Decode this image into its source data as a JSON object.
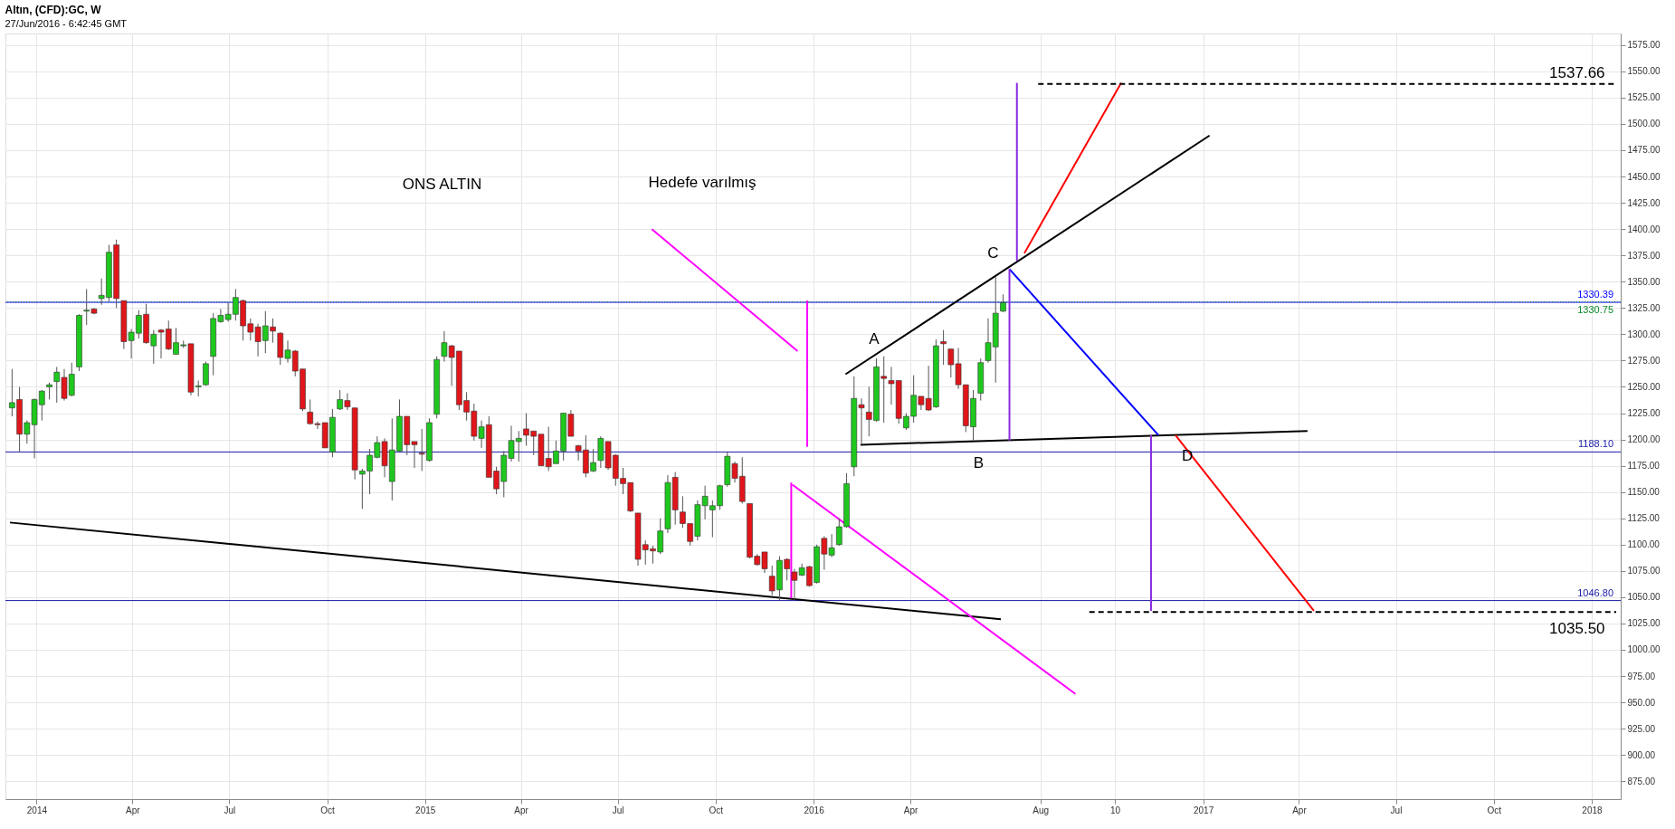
{
  "chart_data": {
    "type": "candlestick",
    "title": "Altın, (CFD):GC, W",
    "subtitle": "27/Jun/2016 - 6:42:45 GMT",
    "xlim": [
      "2013-12-07",
      "2018-01-24"
    ],
    "xticks": [
      {
        "value": "2014-01-01",
        "label": "2014"
      },
      {
        "value": "2014-04-01",
        "label": "Apr"
      },
      {
        "value": "2014-07-01",
        "label": "Jul"
      },
      {
        "value": "2014-10-01",
        "label": "Oct"
      },
      {
        "value": "2015-01-01",
        "label": "2015"
      },
      {
        "value": "2015-04-01",
        "label": "Apr"
      },
      {
        "value": "2015-07-01",
        "label": "Jul"
      },
      {
        "value": "2015-10-01",
        "label": "Oct"
      },
      {
        "value": "2016-01-01",
        "label": "2016"
      },
      {
        "value": "2016-04-01",
        "label": "Apr"
      },
      {
        "value": "2016-08-01",
        "label": "Aug"
      },
      {
        "value": "2016-10-10",
        "label": "10"
      },
      {
        "value": "2017-01-01",
        "label": "2017"
      },
      {
        "value": "2017-04-01",
        "label": "Apr"
      },
      {
        "value": "2017-07-01",
        "label": "Jul"
      },
      {
        "value": "2017-10-01",
        "label": "Oct"
      },
      {
        "value": "2018-01-01",
        "label": "2018"
      }
    ],
    "ylim": [
      858,
      1586
    ],
    "yticks": [
      {
        "value": 875,
        "label": "875.00"
      },
      {
        "value": 900,
        "label": "900.00"
      },
      {
        "value": 925,
        "label": "925.00"
      },
      {
        "value": 950,
        "label": "950.00"
      },
      {
        "value": 975,
        "label": "975.00"
      },
      {
        "value": 1000,
        "label": "1000.00"
      },
      {
        "value": 1025,
        "label": "1025.00"
      },
      {
        "value": 1050,
        "label": "1050.00"
      },
      {
        "value": 1075,
        "label": "1075.00"
      },
      {
        "value": 1100,
        "label": "1100.00"
      },
      {
        "value": 1125,
        "label": "1125.00"
      },
      {
        "value": 1150,
        "label": "1150.00"
      },
      {
        "value": 1175,
        "label": "1175.00"
      },
      {
        "value": 1200,
        "label": "1200.00"
      },
      {
        "value": 1225,
        "label": "1225.00"
      },
      {
        "value": 1250,
        "label": "1250.00"
      },
      {
        "value": 1275,
        "label": "1275.00"
      },
      {
        "value": 1300,
        "label": "1300.00"
      },
      {
        "value": 1325,
        "label": "1325.00"
      },
      {
        "value": 1350,
        "label": "1350.00"
      },
      {
        "value": 1375,
        "label": "1375.00"
      },
      {
        "value": 1400,
        "label": "1400.00"
      },
      {
        "value": 1425,
        "label": "1425.00"
      },
      {
        "value": 1450,
        "label": "1450.00"
      },
      {
        "value": 1475,
        "label": "1475.00"
      },
      {
        "value": 1500,
        "label": "1500.00"
      },
      {
        "value": 1525,
        "label": "1525.00"
      },
      {
        "value": 1550,
        "label": "1550.00"
      },
      {
        "value": 1575,
        "label": "1575.00"
      }
    ],
    "grid": true,
    "ref_lines": [
      {
        "axis": "y",
        "value": 1330.39,
        "label": "1330.39",
        "color": "#0000ff",
        "line_style": "solid"
      },
      {
        "axis": "y",
        "value": 1330.75,
        "label": "1330.75",
        "color": "#0a8a2a",
        "line_style": "dotted"
      },
      {
        "axis": "y",
        "value": 1188.1,
        "label": "1188.10",
        "color": "#1a1aa6",
        "line_style": "solid"
      },
      {
        "axis": "y",
        "value": 1046.8,
        "label": "1046.80",
        "color": "#1a1aa6",
        "line_style": "solid"
      }
    ],
    "annotations": [
      "ONS ALTIN",
      "Hedefe varılmış",
      "A",
      "B",
      "C",
      "D",
      "1537.66",
      "1035.50"
    ],
    "series": [
      {
        "type": "line",
        "color": "#000000",
        "line_style": "solid",
        "x": [
          "2013-12-07",
          "2016-06-25"
        ],
        "values": [
          1121,
          1029
        ]
      },
      {
        "type": "line",
        "color": "#000000",
        "line_style": "solid",
        "x": [
          "2016-01-31",
          "2017-01-07"
        ],
        "values": [
          1262,
          1489
        ]
      },
      {
        "type": "line",
        "color": "#000000",
        "line_style": "solid",
        "x": [
          "2016-02-14",
          "2017-04-09"
        ],
        "values": [
          1195,
          1208
        ]
      },
      {
        "type": "line",
        "color": "#0000ff",
        "line_style": "solid",
        "x": [
          "2016-07-03",
          "2016-11-20"
        ],
        "values": [
          1362,
          1204
        ]
      },
      {
        "type": "line",
        "color": "#ff0000",
        "line_style": "solid",
        "x": [
          "2016-07-17",
          "2016-10-16"
        ],
        "values": [
          1377,
          1539
        ]
      },
      {
        "type": "line",
        "color": "#ff0000",
        "line_style": "solid",
        "x": [
          "2016-12-06",
          "2017-04-15"
        ],
        "values": [
          1204,
          1037
        ]
      },
      {
        "type": "line",
        "color": "#8a2be2",
        "line_style": "solid",
        "x": [
          "2016-07-03",
          "2016-07-03"
        ],
        "values": [
          1362,
          1199
        ]
      },
      {
        "type": "line",
        "color": "#8a2be2",
        "line_style": "solid",
        "x": [
          "2016-07-10",
          "2016-07-10"
        ],
        "values": [
          1539,
          1370
        ]
      },
      {
        "type": "line",
        "color": "#8a2be2",
        "line_style": "solid",
        "x": [
          "2016-11-13",
          "2016-11-13"
        ],
        "values": [
          1204,
          1037
        ]
      },
      {
        "type": "line",
        "color": "#ff00ff",
        "line_style": "solid",
        "x": [
          "2015-12-26",
          "2015-12-26"
        ],
        "values": [
          1332,
          1193
        ]
      },
      {
        "type": "line",
        "color": "#ff00ff",
        "line_style": "solid",
        "x": [
          "2015-12-11",
          "2015-12-11"
        ],
        "values": [
          1159,
          1049
        ]
      },
      {
        "type": "line",
        "color": "#ff00ff",
        "line_style": "solid",
        "x": [
          "2015-08-02",
          "2015-12-17"
        ],
        "values": [
          1400,
          1284
        ]
      },
      {
        "type": "line",
        "color": "#ff00ff",
        "line_style": "solid",
        "x": [
          "2016-09-03",
          "2015-12-12"
        ],
        "values": [
          958,
          1157
        ]
      },
      {
        "type": "line",
        "color": "#000000",
        "line_style": "dashed",
        "x": [
          "2016-07-30",
          "2018-01-24"
        ],
        "values": [
          1538,
          1538
        ]
      },
      {
        "type": "line",
        "color": "#000000",
        "line_style": "dashed",
        "x": [
          "2016-09-16",
          "2018-01-24"
        ],
        "values": [
          1036,
          1036
        ]
      },
      {
        "type": "candlestick",
        "colors": [
          "#1ec81e",
          "#e0161b",
          "#1ec81e",
          "#1ec81e",
          "#1ec81e",
          "#1ec81e",
          "#1ec81e",
          "#e0161b",
          "#1ec81e",
          "#1ec81e",
          "#1ec81e",
          "#e0161b",
          "#1ec81e",
          "#1ec81e",
          "#e0161b",
          "#e0161b",
          "#1ec81e",
          "#1ec81e",
          "#e0161b",
          "#1ec81e",
          "#e0161b",
          "#e0161b",
          "#1ec81e",
          "#1ec81e",
          "#e0161b",
          "#1ec81e",
          "#1ec81e",
          "#1ec81e",
          "#1ec81e",
          "#1ec81e",
          "#1ec81e",
          "#e0161b",
          "#e0161b",
          "#e0161b",
          "#1ec81e",
          "#e0161b",
          "#e0161b",
          "#1ec81e",
          "#e0161b",
          "#e0161b",
          "#e0161b",
          "#e0161b",
          "#e0161b",
          "#1ec81e",
          "#1ec81e",
          "#e0161b",
          "#e0161b",
          "#1ec81e",
          "#1ec81e",
          "#1ec81e",
          "#e0161b",
          "#1ec81e",
          "#1ec81e",
          "#e0161b",
          "#e0161b",
          "#e0161b",
          "#1ec81e",
          "#1ec81e",
          "#1ec81e",
          "#e0161b",
          "#e0161b",
          "#e0161b",
          "#e0161b",
          "#1ec81e",
          "#e0161b",
          "#e0161b",
          "#1ec81e",
          "#1ec81e",
          "#1ec81e",
          "#e0161b",
          "#e0161b",
          "#e0161b",
          "#e0161b",
          "#1ec81e",
          "#1ec81e",
          "#e0161b",
          "#e0161b",
          "#e0161b",
          "#1ec81e",
          "#1ec81e",
          "#e0161b",
          "#e0161b",
          "#e0161b",
          "#e0161b",
          "#e0161b",
          "#e0161b",
          "#e0161b",
          "#1ec81e",
          "#1ec81e",
          "#e0161b",
          "#e0161b",
          "#e0161b",
          "#1ec81e",
          "#1ec81e",
          "#1ec81e",
          "#1ec81e",
          "#1ec81e",
          "#e0161b",
          "#e0161b",
          "#e0161b",
          "#e0161b",
          "#e0161b",
          "#e0161b",
          "#1ec81e",
          "#e0161b",
          "#e0161b",
          "#1ec81e",
          "#e0161b",
          "#1ec81e",
          "#e0161b",
          "#1ec81e",
          "#1ec81e",
          "#1ec81e",
          "#1ec81e",
          "#e0161b",
          "#e0161b",
          "#1ec81e",
          "#e0161b",
          "#e0161b",
          "#e0161b",
          "#1ec81e",
          "#1ec81e",
          "#e0161b",
          "#e0161b",
          "#1ec81e",
          "#e0161b",
          "#e0161b",
          "#e0161b",
          "#e0161b",
          "#1ec81e",
          "#1ec81e",
          "#1ec81e",
          "#1ec81e",
          "#1ec81e"
        ],
        "x": [
          "2013-12-09",
          "2013-12-16",
          "2013-12-23",
          "2013-12-30",
          "2014-01-06",
          "2014-01-13",
          "2014-01-20",
          "2014-01-27",
          "2014-02-03",
          "2014-02-10",
          "2014-02-17",
          "2014-02-24",
          "2014-03-03",
          "2014-03-10",
          "2014-03-17",
          "2014-03-24",
          "2014-03-31",
          "2014-04-07",
          "2014-04-14",
          "2014-04-21",
          "2014-04-28",
          "2014-05-05",
          "2014-05-12",
          "2014-05-19",
          "2014-05-26",
          "2014-06-02",
          "2014-06-09",
          "2014-06-16",
          "2014-06-23",
          "2014-06-30",
          "2014-07-07",
          "2014-07-14",
          "2014-07-21",
          "2014-07-28",
          "2014-08-04",
          "2014-08-11",
          "2014-08-18",
          "2014-08-25",
          "2014-09-01",
          "2014-09-08",
          "2014-09-15",
          "2014-09-22",
          "2014-09-29",
          "2014-10-06",
          "2014-10-13",
          "2014-10-20",
          "2014-10-27",
          "2014-11-03",
          "2014-11-10",
          "2014-11-17",
          "2014-11-24",
          "2014-12-01",
          "2014-12-08",
          "2014-12-15",
          "2014-12-22",
          "2014-12-29",
          "2015-01-05",
          "2015-01-12",
          "2015-01-19",
          "2015-01-26",
          "2015-02-02",
          "2015-02-09",
          "2015-02-16",
          "2015-02-23",
          "2015-03-02",
          "2015-03-09",
          "2015-03-16",
          "2015-03-23",
          "2015-03-30",
          "2015-04-06",
          "2015-04-13",
          "2015-04-20",
          "2015-04-27",
          "2015-05-04",
          "2015-05-11",
          "2015-05-18",
          "2015-05-25",
          "2015-06-01",
          "2015-06-08",
          "2015-06-15",
          "2015-06-22",
          "2015-06-29",
          "2015-07-06",
          "2015-07-13",
          "2015-07-20",
          "2015-07-27",
          "2015-08-03",
          "2015-08-10",
          "2015-08-17",
          "2015-08-24",
          "2015-08-31",
          "2015-09-07",
          "2015-09-14",
          "2015-09-21",
          "2015-09-28",
          "2015-10-05",
          "2015-10-12",
          "2015-10-19",
          "2015-10-26",
          "2015-11-02",
          "2015-11-09",
          "2015-11-16",
          "2015-11-23",
          "2015-11-30",
          "2015-12-07",
          "2015-12-14",
          "2015-12-21",
          "2015-12-28",
          "2016-01-04",
          "2016-01-11",
          "2016-01-18",
          "2016-01-25",
          "2016-02-01",
          "2016-02-08",
          "2016-02-15",
          "2016-02-22",
          "2016-02-29",
          "2016-03-07",
          "2016-03-14",
          "2016-03-21",
          "2016-03-28",
          "2016-04-04",
          "2016-04-11",
          "2016-04-18",
          "2016-04-25",
          "2016-05-02",
          "2016-05-09",
          "2016-05-16",
          "2016-05-23",
          "2016-05-30",
          "2016-06-06",
          "2016-06-13",
          "2016-06-20",
          "2016-06-27"
        ],
        "ohlc": [
          [
            1230,
            1267,
            1222,
            1235
          ],
          [
            1238,
            1250,
            1188,
            1205
          ],
          [
            1205,
            1218,
            1196,
            1216
          ],
          [
            1214,
            1239,
            1182,
            1238
          ],
          [
            1233,
            1247,
            1218,
            1246
          ],
          [
            1250,
            1254,
            1238,
            1252
          ],
          [
            1255,
            1269,
            1235,
            1264
          ],
          [
            1259,
            1267,
            1237,
            1239
          ],
          [
            1242,
            1273,
            1241,
            1262
          ],
          [
            1269,
            1319,
            1265,
            1318
          ],
          [
            1322,
            1343,
            1309,
            1323
          ],
          [
            1324,
            1325,
            1319,
            1320
          ],
          [
            1334,
            1353,
            1328,
            1337
          ],
          [
            1335,
            1385,
            1331,
            1378
          ],
          [
            1385,
            1390,
            1325,
            1334
          ],
          [
            1332,
            1332,
            1286,
            1293
          ],
          [
            1294,
            1305,
            1277,
            1302
          ],
          [
            1301,
            1323,
            1296,
            1318
          ],
          [
            1319,
            1329,
            1291,
            1292
          ],
          [
            1289,
            1304,
            1272,
            1300
          ],
          [
            1304,
            1305,
            1277,
            1302
          ],
          [
            1305,
            1313,
            1285,
            1286
          ],
          [
            1281,
            1306,
            1281,
            1292
          ],
          [
            1289,
            1294,
            1287,
            1290
          ],
          [
            1291,
            1291,
            1242,
            1245
          ],
          [
            1250,
            1256,
            1241,
            1251
          ],
          [
            1252,
            1274,
            1251,
            1272
          ],
          [
            1279,
            1320,
            1261,
            1315
          ],
          [
            1312,
            1324,
            1311,
            1318
          ],
          [
            1314,
            1330,
            1312,
            1319
          ],
          [
            1319,
            1343,
            1313,
            1335
          ],
          [
            1332,
            1333,
            1294,
            1308
          ],
          [
            1310,
            1315,
            1294,
            1302
          ],
          [
            1307,
            1310,
            1279,
            1293
          ],
          [
            1294,
            1322,
            1282,
            1308
          ],
          [
            1307,
            1315,
            1292,
            1303
          ],
          [
            1301,
            1302,
            1271,
            1278
          ],
          [
            1277,
            1294,
            1273,
            1285
          ],
          [
            1284,
            1285,
            1260,
            1265
          ],
          [
            1267,
            1267,
            1227,
            1229
          ],
          [
            1226,
            1238,
            1214,
            1215
          ],
          [
            1215,
            1217,
            1210,
            1214
          ],
          [
            1216,
            1216,
            1192,
            1192
          ],
          [
            1188,
            1229,
            1183,
            1221
          ],
          [
            1229,
            1247,
            1228,
            1238
          ],
          [
            1237,
            1244,
            1228,
            1231
          ],
          [
            1230,
            1230,
            1162,
            1171
          ],
          [
            1167,
            1172,
            1134,
            1170
          ],
          [
            1170,
            1191,
            1148,
            1185
          ],
          [
            1183,
            1203,
            1182,
            1197
          ],
          [
            1198,
            1201,
            1164,
            1175
          ],
          [
            1160,
            1220,
            1142,
            1190
          ],
          [
            1189,
            1238,
            1188,
            1222
          ],
          [
            1222,
            1222,
            1185,
            1195
          ],
          [
            1198,
            1198,
            1173,
            1195
          ],
          [
            1187,
            1210,
            1170,
            1186
          ],
          [
            1180,
            1220,
            1179,
            1216
          ],
          [
            1224,
            1279,
            1220,
            1276
          ],
          [
            1279,
            1303,
            1274,
            1292
          ],
          [
            1289,
            1290,
            1251,
            1278
          ],
          [
            1284,
            1284,
            1228,
            1233
          ],
          [
            1237,
            1245,
            1218,
            1226
          ],
          [
            1227,
            1234,
            1199,
            1203
          ],
          [
            1201,
            1218,
            1192,
            1212
          ],
          [
            1214,
            1222,
            1164,
            1164
          ],
          [
            1170,
            1174,
            1148,
            1153
          ],
          [
            1160,
            1189,
            1145,
            1185
          ],
          [
            1182,
            1213,
            1179,
            1199
          ],
          [
            1198,
            1208,
            1179,
            1201
          ],
          [
            1210,
            1225,
            1194,
            1204
          ],
          [
            1208,
            1208,
            1185,
            1203
          ],
          [
            1205,
            1205,
            1175,
            1175
          ],
          [
            1182,
            1212,
            1170,
            1174
          ],
          [
            1177,
            1199,
            1177,
            1189
          ],
          [
            1189,
            1225,
            1180,
            1225
          ],
          [
            1224,
            1228,
            1203,
            1203
          ],
          [
            1194,
            1195,
            1180,
            1189
          ],
          [
            1190,
            1204,
            1164,
            1168
          ],
          [
            1170,
            1191,
            1169,
            1178
          ],
          [
            1180,
            1203,
            1173,
            1201
          ],
          [
            1198,
            1198,
            1171,
            1173
          ],
          [
            1185,
            1186,
            1156,
            1163
          ],
          [
            1163,
            1173,
            1148,
            1158
          ],
          [
            1159,
            1159,
            1131,
            1132
          ],
          [
            1130,
            1130,
            1080,
            1086
          ],
          [
            1100,
            1104,
            1081,
            1095
          ],
          [
            1096,
            1099,
            1082,
            1094
          ],
          [
            1093,
            1125,
            1091,
            1113
          ],
          [
            1115,
            1166,
            1111,
            1159
          ],
          [
            1164,
            1169,
            1119,
            1133
          ],
          [
            1131,
            1146,
            1116,
            1120
          ],
          [
            1120,
            1120,
            1099,
            1103
          ],
          [
            1108,
            1142,
            1104,
            1138
          ],
          [
            1137,
            1156,
            1124,
            1146
          ],
          [
            1133,
            1142,
            1107,
            1137
          ],
          [
            1137,
            1157,
            1133,
            1156
          ],
          [
            1157,
            1188,
            1155,
            1184
          ],
          [
            1177,
            1179,
            1159,
            1163
          ],
          [
            1165,
            1183,
            1139,
            1141
          ],
          [
            1139,
            1139,
            1087,
            1088
          ],
          [
            1089,
            1091,
            1080,
            1081
          ],
          [
            1093,
            1093,
            1073,
            1077
          ],
          [
            1070,
            1080,
            1052,
            1056
          ],
          [
            1057,
            1089,
            1047,
            1085
          ],
          [
            1086,
            1087,
            1066,
            1077
          ],
          [
            1074,
            1077,
            1047,
            1066
          ],
          [
            1071,
            1082,
            1070,
            1078
          ],
          [
            1079,
            1080,
            1060,
            1061
          ],
          [
            1064,
            1100,
            1063,
            1098
          ],
          [
            1106,
            1108,
            1076,
            1091
          ],
          [
            1090,
            1110,
            1088,
            1097
          ],
          [
            1100,
            1125,
            1099,
            1117
          ],
          [
            1117,
            1168,
            1116,
            1158
          ],
          [
            1174,
            1260,
            1165,
            1239
          ],
          [
            1233,
            1239,
            1195,
            1230
          ],
          [
            1226,
            1250,
            1203,
            1219
          ],
          [
            1218,
            1277,
            1217,
            1269
          ],
          [
            1260,
            1279,
            1216,
            1258
          ],
          [
            1256,
            1269,
            1233,
            1253
          ],
          [
            1256,
            1256,
            1215,
            1220
          ],
          [
            1211,
            1225,
            1209,
            1222
          ],
          [
            1222,
            1261,
            1216,
            1242
          ],
          [
            1241,
            1241,
            1228,
            1233
          ],
          [
            1239,
            1270,
            1227,
            1228
          ],
          [
            1231,
            1295,
            1230,
            1289
          ],
          [
            1293,
            1304,
            1271,
            1291
          ],
          [
            1286,
            1286,
            1259,
            1271
          ],
          [
            1272,
            1287,
            1248,
            1252
          ],
          [
            1252,
            1252,
            1207,
            1213
          ],
          [
            1212,
            1247,
            1199,
            1239
          ],
          [
            1244,
            1277,
            1237,
            1273
          ],
          [
            1275,
            1315,
            1273,
            1292
          ],
          [
            1288,
            1355,
            1254,
            1320
          ],
          [
            1322,
            1338,
            1321,
            1330
          ]
        ]
      }
    ]
  }
}
